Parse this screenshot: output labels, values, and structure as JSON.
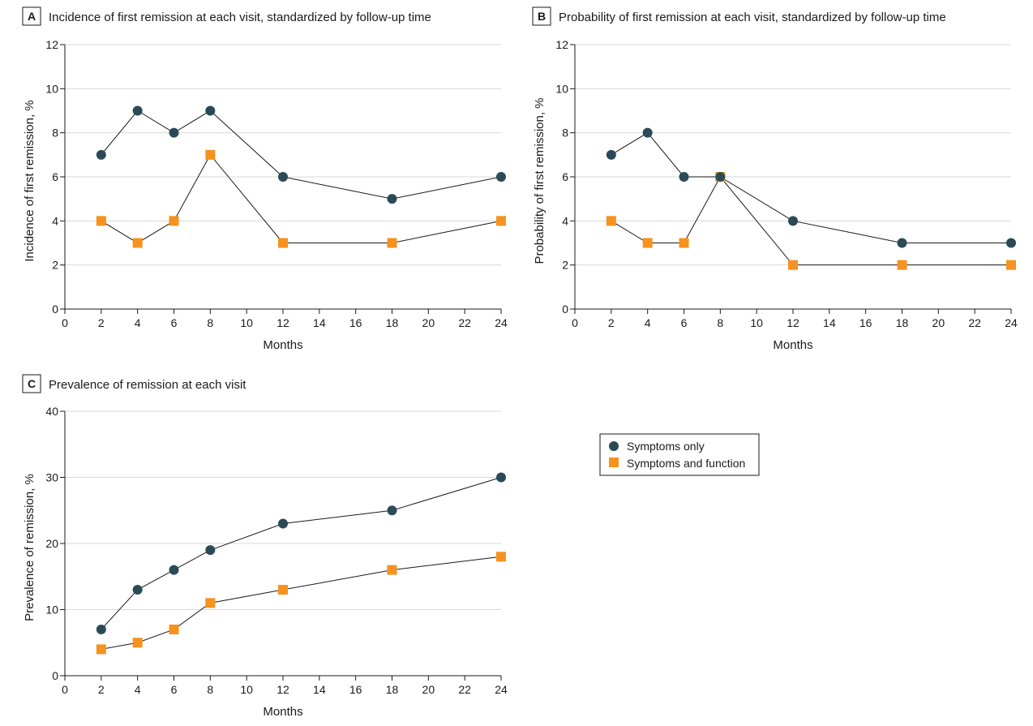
{
  "colors": {
    "symptoms_only": "#2b4a58",
    "symptoms_and_function": "#f6921e",
    "grid": "#d9d9d9",
    "line": "#1a1a1a"
  },
  "legend": {
    "items": [
      {
        "label": "Symptoms only",
        "marker": "circle",
        "color": "#2b4a58"
      },
      {
        "label": "Symptoms and function",
        "marker": "square",
        "color": "#f6921e"
      }
    ]
  },
  "chart_data": [
    {
      "panel": "A",
      "type": "line",
      "title": "Incidence of first remission at each visit, standardized by follow-up time",
      "xlabel": "Months",
      "ylabel": "Incidence of first remission, %",
      "xlim": [
        0,
        24
      ],
      "ylim": [
        0,
        12
      ],
      "xticks": [
        0,
        2,
        4,
        6,
        8,
        10,
        12,
        14,
        16,
        18,
        20,
        22,
        24
      ],
      "yticks": [
        0,
        2,
        4,
        6,
        8,
        10,
        12
      ],
      "grid": "horizontal",
      "series": [
        {
          "name": "Symptoms only",
          "marker": "circle",
          "x": [
            2,
            4,
            6,
            8,
            12,
            18,
            24
          ],
          "values": [
            7,
            9,
            8,
            9,
            6,
            5,
            6
          ]
        },
        {
          "name": "Symptoms and function",
          "marker": "square",
          "x": [
            2,
            4,
            6,
            8,
            12,
            18,
            24
          ],
          "values": [
            4,
            3,
            4,
            7,
            3,
            3,
            4
          ]
        }
      ]
    },
    {
      "panel": "B",
      "type": "line",
      "title": "Probability of first remission at each visit, standardized by follow-up time",
      "xlabel": "Months",
      "ylabel": "Probability of first remission, %",
      "xlim": [
        0,
        24
      ],
      "ylim": [
        0,
        12
      ],
      "xticks": [
        0,
        2,
        4,
        6,
        8,
        10,
        12,
        14,
        16,
        18,
        20,
        22,
        24
      ],
      "yticks": [
        0,
        2,
        4,
        6,
        8,
        10,
        12
      ],
      "grid": "horizontal",
      "series": [
        {
          "name": "Symptoms only",
          "marker": "circle",
          "x": [
            2,
            4,
            6,
            8,
            12,
            18,
            24
          ],
          "values": [
            7,
            8,
            6,
            6,
            4,
            3,
            3
          ]
        },
        {
          "name": "Symptoms and function",
          "marker": "square",
          "x": [
            2,
            4,
            6,
            8,
            12,
            18,
            24
          ],
          "values": [
            4,
            3,
            3,
            6,
            2,
            2,
            2
          ]
        }
      ]
    },
    {
      "panel": "C",
      "type": "line",
      "title": "Prevalence of remission at each visit",
      "xlabel": "Months",
      "ylabel": "Prevalence of remission, %",
      "xlim": [
        0,
        24
      ],
      "ylim": [
        0,
        40
      ],
      "xticks": [
        0,
        2,
        4,
        6,
        8,
        10,
        12,
        14,
        16,
        18,
        20,
        22,
        24
      ],
      "yticks": [
        0,
        10,
        20,
        30,
        40
      ],
      "grid": "horizontal",
      "series": [
        {
          "name": "Symptoms only",
          "marker": "circle",
          "x": [
            2,
            4,
            6,
            8,
            12,
            18,
            24
          ],
          "values": [
            7,
            13,
            16,
            19,
            23,
            25,
            30
          ]
        },
        {
          "name": "Symptoms and function",
          "marker": "square",
          "x": [
            2,
            4,
            6,
            8,
            12,
            18,
            24
          ],
          "values": [
            4,
            5,
            7,
            11,
            13,
            16,
            18
          ]
        }
      ]
    }
  ]
}
